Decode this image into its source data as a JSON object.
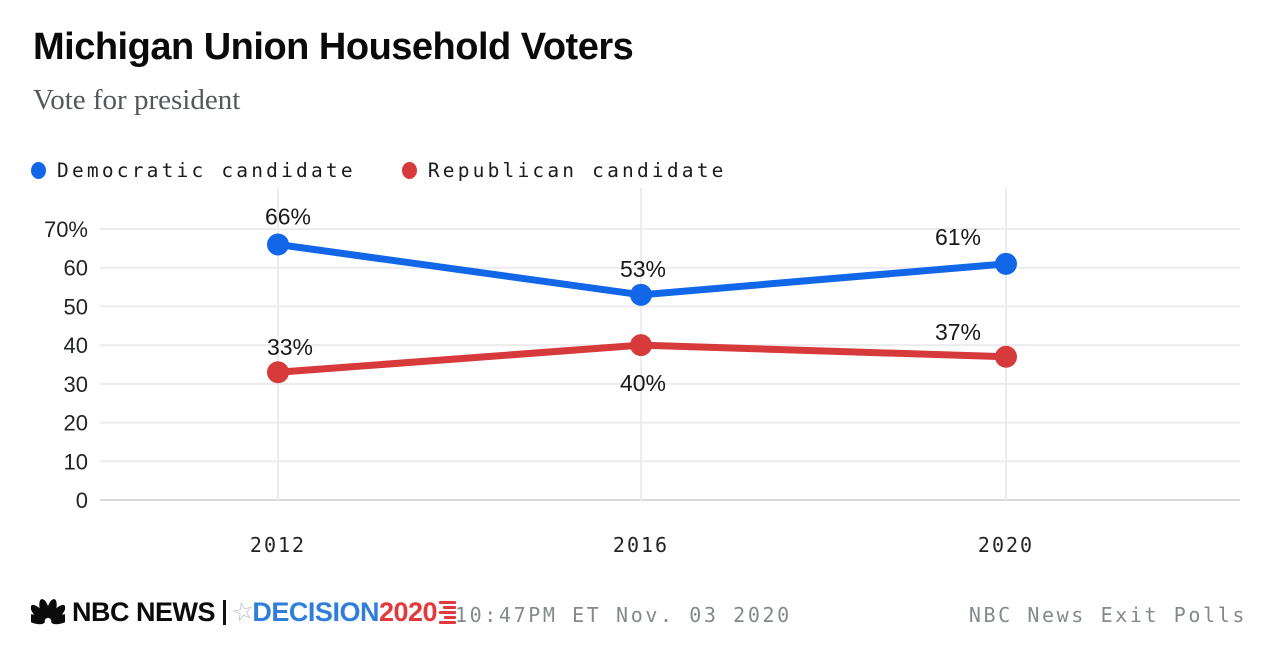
{
  "header": {
    "title": "Michigan Union Household Voters",
    "subtitle": "Vote for president"
  },
  "chart_data": {
    "type": "line",
    "categories": [
      "2012",
      "2016",
      "2020"
    ],
    "series": [
      {
        "name": "Democratic candidate",
        "color": "#1167e8",
        "values": [
          66,
          53,
          61
        ],
        "point_labels": [
          "66%",
          "53%",
          "61%"
        ]
      },
      {
        "name": "Republican candidate",
        "color": "#d73a3a",
        "values": [
          33,
          40,
          37
        ],
        "point_labels": [
          "33%",
          "40%",
          "37%"
        ]
      }
    ],
    "ylabel": "",
    "xlabel": "",
    "ylim": [
      0,
      70
    ],
    "yticks": [
      0,
      10,
      20,
      30,
      40,
      50,
      60,
      70
    ],
    "ytick_labels": [
      "0",
      "10",
      "20",
      "30",
      "40",
      "50",
      "60",
      "70%"
    ],
    "grid": true,
    "legend_position": "top-left",
    "gridline_color": "#ececee",
    "zeroline_color": "#d9d9db"
  },
  "footer": {
    "brand": "NBC NEWS",
    "decision_word": "DECISION",
    "decision_year": "2020",
    "decision_word_color": "#2f7edb",
    "decision_year_color": "#e03a3c",
    "star_icon_symbol": "☆",
    "timestamp": "10:47PM ET Nov. 03 2020",
    "source": "NBC News Exit Polls"
  }
}
